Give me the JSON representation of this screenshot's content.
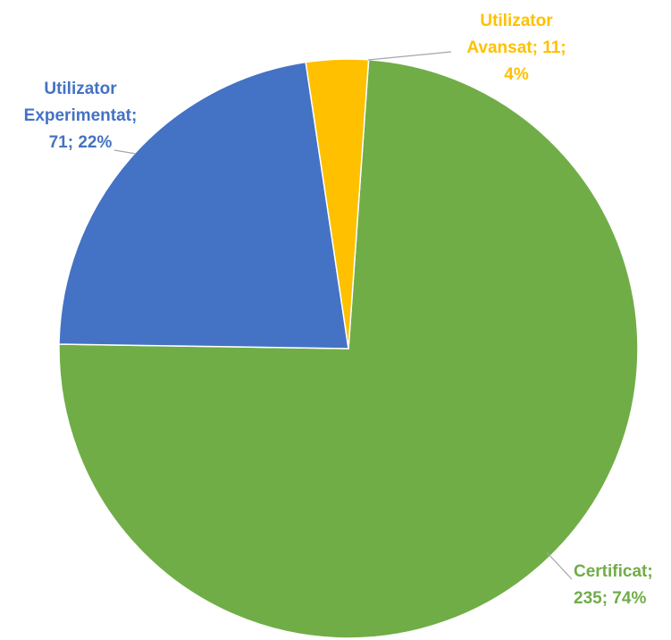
{
  "chart_data": {
    "type": "pie",
    "values": [
      235,
      71,
      11
    ],
    "colors": [
      "#70ad47",
      "#4472c4",
      "#ffc000"
    ],
    "value_labels": [
      [
        "Certificat;",
        "235; 74%"
      ],
      [
        "Utilizator",
        "Experimentat;",
        "71; 22%"
      ],
      [
        "Utilizator",
        "Avansat; 11;",
        "4%"
      ]
    ]
  }
}
